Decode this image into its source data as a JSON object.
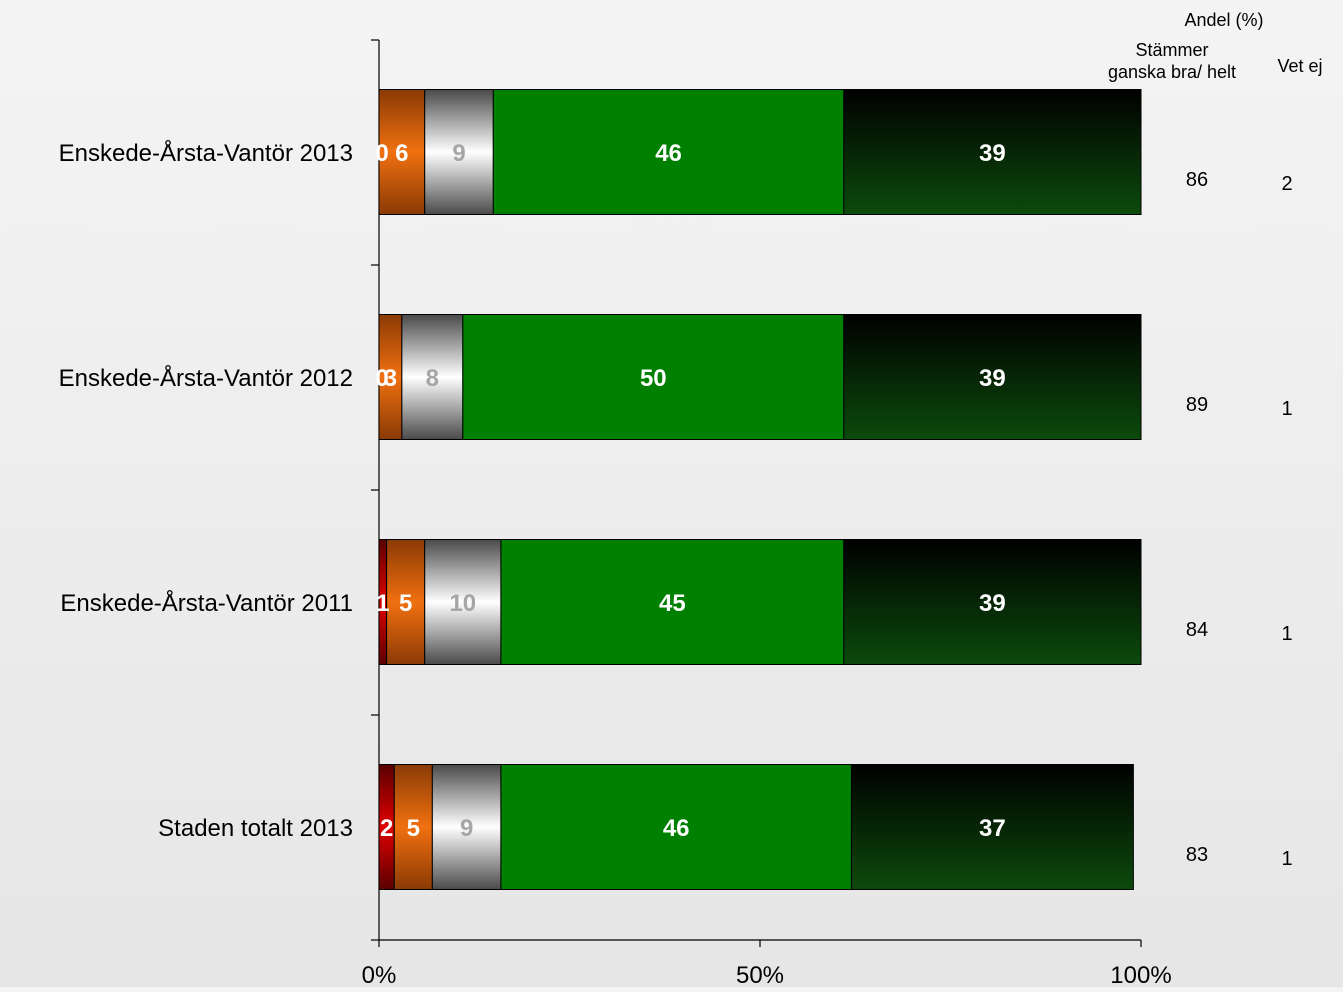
{
  "chart_data": {
    "type": "bar",
    "orientation": "horizontal",
    "stacked": true,
    "percent_stacked": true,
    "categories": [
      "Enskede-Årsta-Vantör 2013",
      "Enskede-Årsta-Vantör 2012",
      "Enskede-Årsta-Vantör 2011",
      "Staden totalt 2013"
    ],
    "series": [
      {
        "values": [
          0,
          0,
          1,
          2
        ],
        "color": "#c00000"
      },
      {
        "values": [
          6,
          3,
          5,
          5
        ],
        "color": "#e46c0a"
      },
      {
        "values": [
          9,
          8,
          10,
          9
        ],
        "color": "#d9d9d9"
      },
      {
        "values": [
          46,
          50,
          45,
          46
        ],
        "color": "#008000"
      },
      {
        "values": [
          39,
          39,
          39,
          37
        ],
        "color": "#0a3d0a"
      }
    ],
    "xlim": [
      0,
      100
    ],
    "x_ticks": [
      "0%",
      "50%",
      "100%"
    ],
    "grid": false,
    "legend": "none",
    "side_table": {
      "title": "Andel (%)",
      "columns": [
        {
          "header": "Stämmer ganska bra/ helt",
          "values": [
            "86",
            "89",
            "84",
            "83"
          ]
        },
        {
          "header": "Vet ej",
          "values": [
            "2",
            "1",
            "1",
            "1"
          ]
        }
      ]
    }
  }
}
